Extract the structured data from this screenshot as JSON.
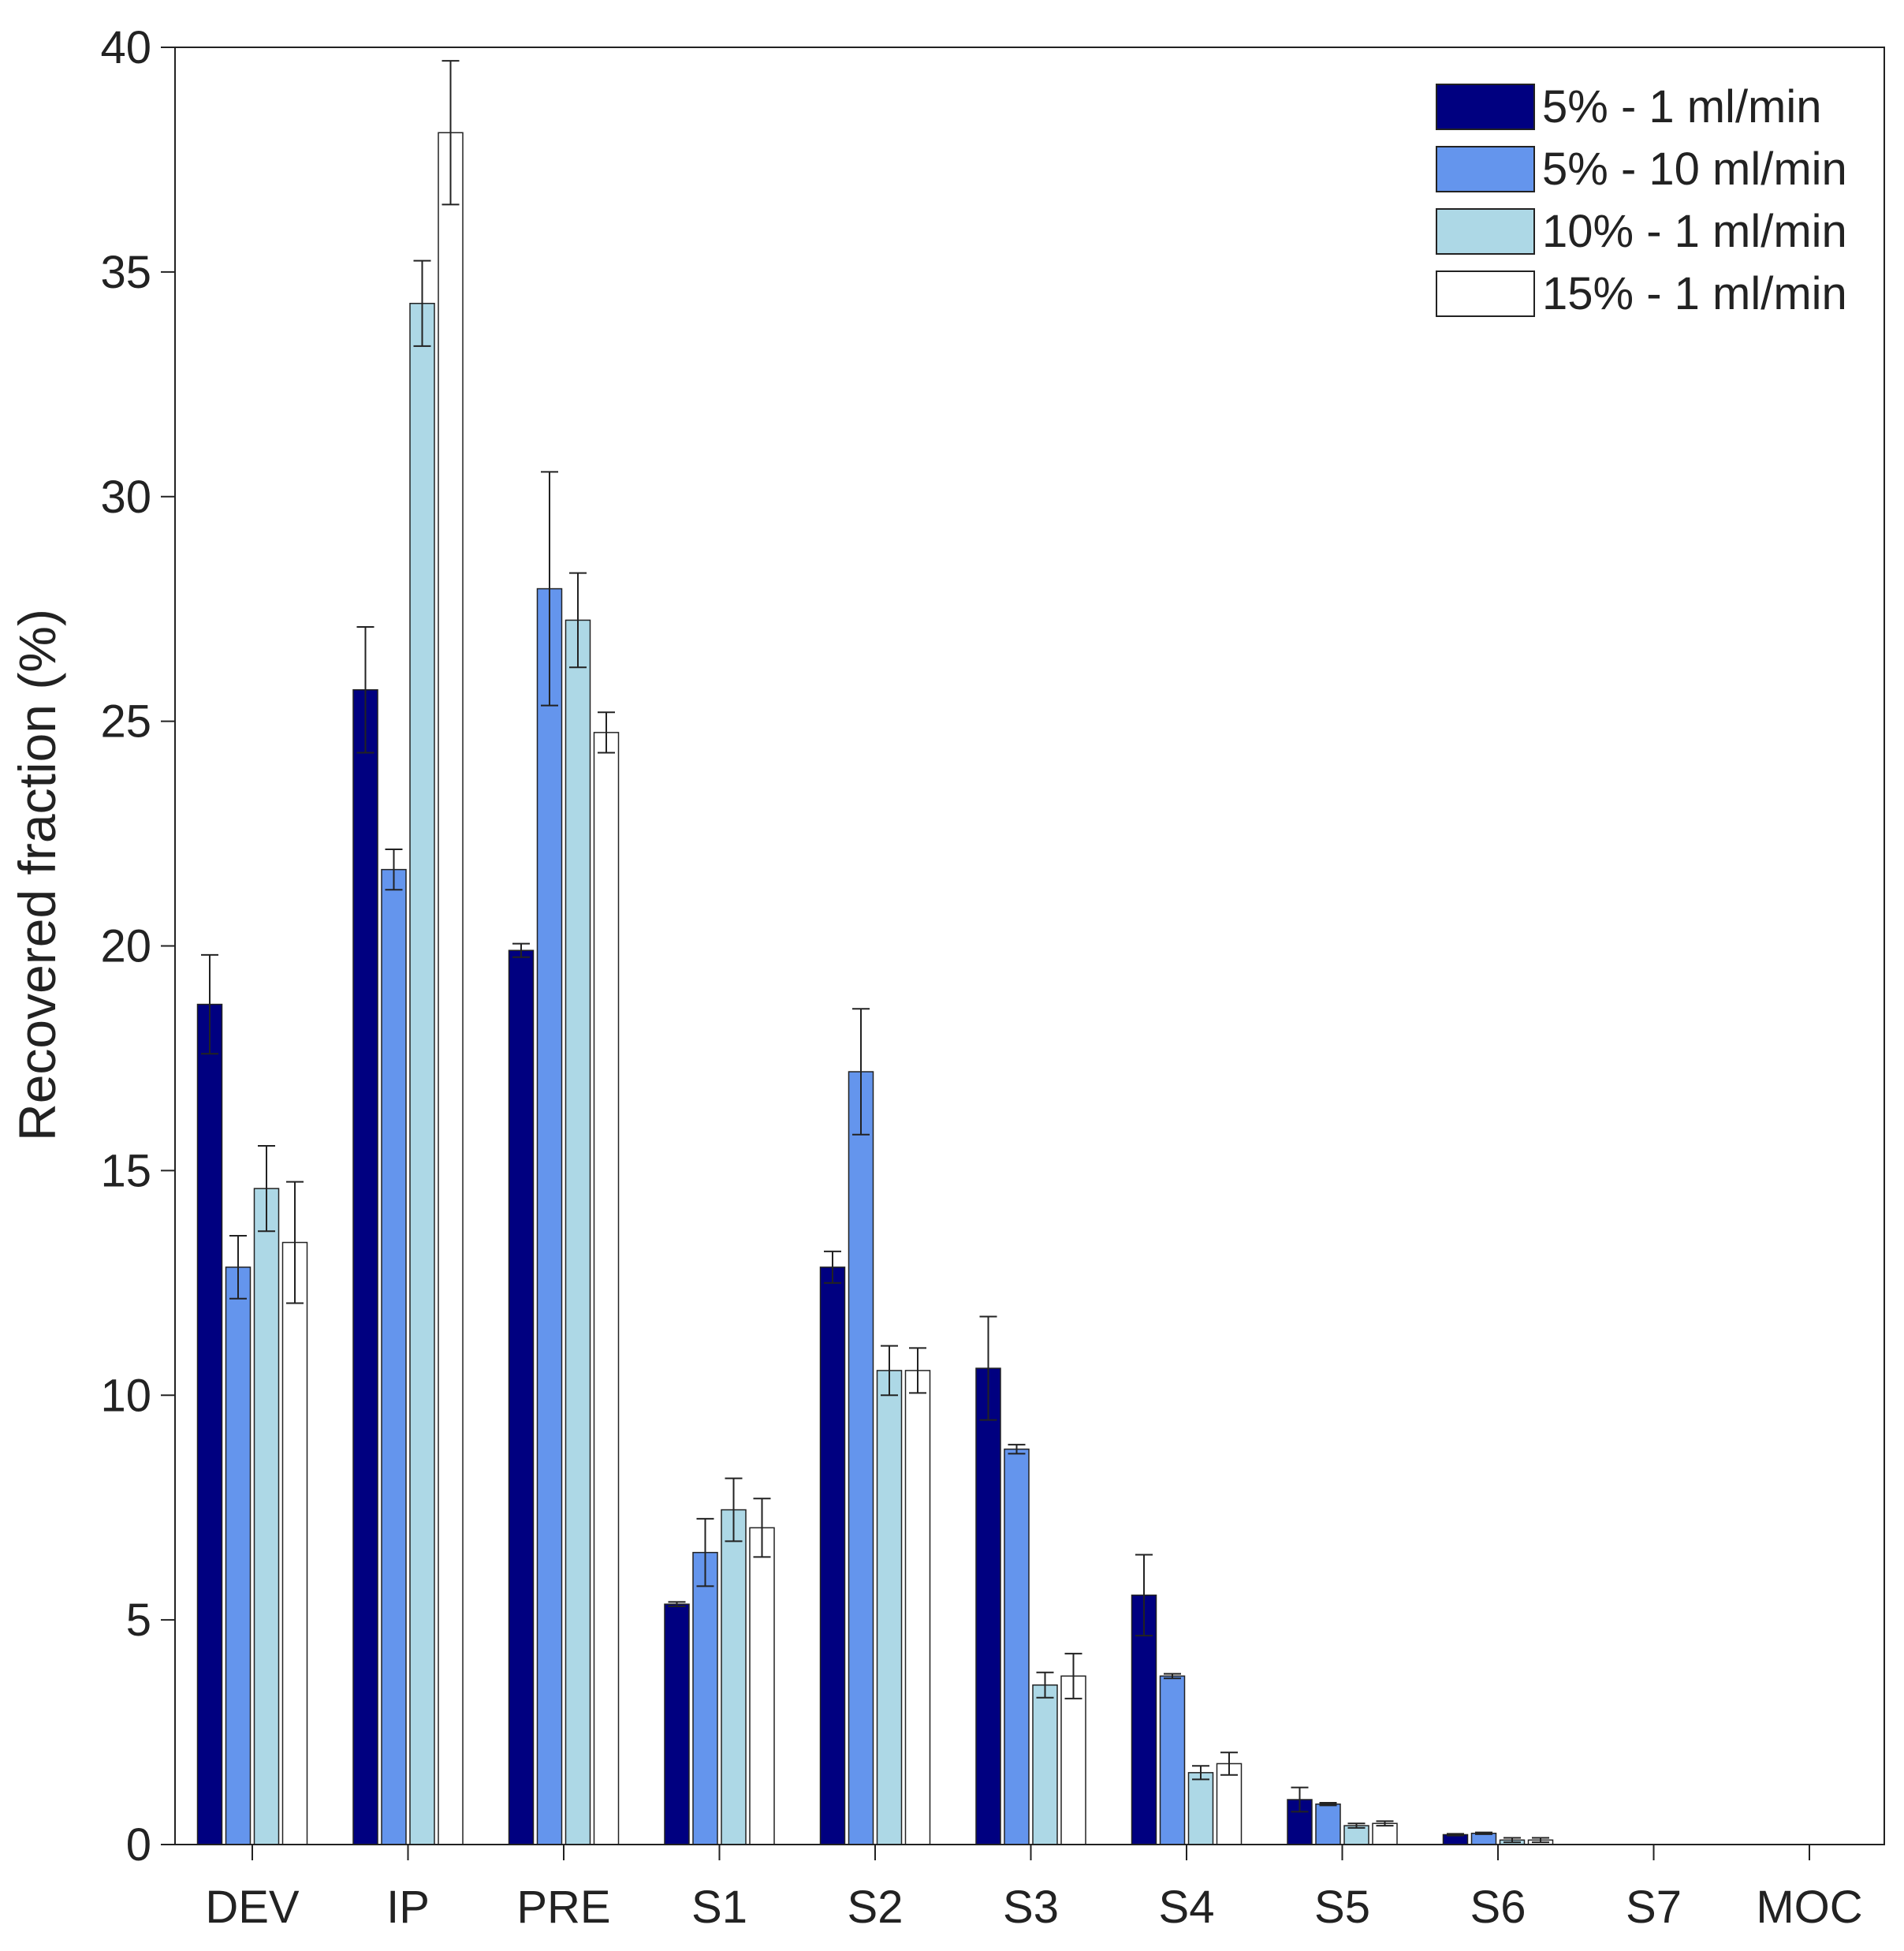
{
  "chart_data": {
    "type": "bar",
    "title": "",
    "xlabel": "",
    "ylabel": "Recovered fraction (%)",
    "ylim": [
      0,
      40
    ],
    "yticks": [
      "0",
      "5",
      "10",
      "15",
      "20",
      "25",
      "30",
      "35",
      "40"
    ],
    "grid": false,
    "legend_position": "top-right",
    "categories": [
      "DEV",
      "IP",
      "PRE",
      "S1",
      "S2",
      "S3",
      "S4",
      "S5",
      "S6",
      "S7",
      "MOC"
    ],
    "series": [
      {
        "name": "5% - 1 ml/min",
        "color": "#000080",
        "values": [
          18.7,
          25.7,
          19.9,
          5.35,
          12.85,
          10.6,
          5.55,
          1.0,
          0.22,
          0.0,
          0.0
        ],
        "errors": [
          1.1,
          1.4,
          0.15,
          0.05,
          0.35,
          1.15,
          0.9,
          0.27,
          0.02,
          0.0,
          0.0
        ]
      },
      {
        "name": "5% - 10 ml/min",
        "color": "#6495ED",
        "values": [
          12.85,
          21.7,
          27.95,
          6.5,
          17.2,
          8.8,
          3.75,
          0.9,
          0.25,
          0.0,
          0.0
        ],
        "errors": [
          0.7,
          0.45,
          2.6,
          0.75,
          1.4,
          0.1,
          0.05,
          0.03,
          0.02,
          0.0,
          0.0
        ]
      },
      {
        "name": "10% - 1 ml/min",
        "color": "#ADD8E6",
        "values": [
          14.6,
          34.3,
          27.25,
          7.45,
          10.55,
          3.55,
          1.6,
          0.42,
          0.1,
          0.0,
          0.0
        ],
        "errors": [
          0.95,
          0.95,
          1.05,
          0.7,
          0.55,
          0.28,
          0.15,
          0.05,
          0.05,
          0.0,
          0.0
        ]
      },
      {
        "name": "15% - 1 ml/min",
        "color": "#FFFFFF",
        "values": [
          13.4,
          38.1,
          24.75,
          7.05,
          10.55,
          3.75,
          1.8,
          0.47,
          0.1,
          0.0,
          0.0
        ],
        "errors": [
          1.35,
          1.6,
          0.45,
          0.65,
          0.5,
          0.5,
          0.25,
          0.05,
          0.05,
          0.0,
          0.0
        ]
      }
    ]
  }
}
